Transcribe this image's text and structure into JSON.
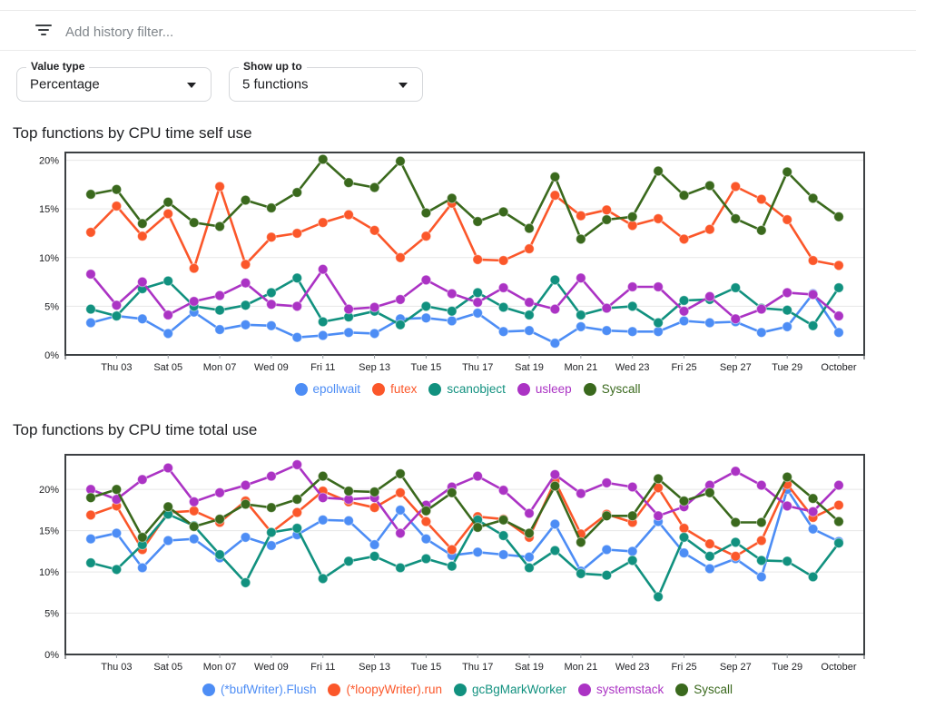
{
  "filter_bar": {
    "placeholder": "Add history filter...",
    "icon": "filter-list"
  },
  "controls": [
    {
      "label": "Value type",
      "value": "Percentage",
      "icon": "chevron-down"
    },
    {
      "label": "Show up to",
      "value": "5 functions",
      "icon": "chevron-down"
    }
  ],
  "colors": {
    "blue": "#4d8df5",
    "orange": "#fb572a",
    "teal": "#11917f",
    "purple": "#ab33c4",
    "green": "#3a691d",
    "grid": "#e7e7e7",
    "plot_border": "#3c4043",
    "axis_text": "#202124"
  },
  "chart_data": [
    {
      "type": "line",
      "title": "Top functions by CPU time self use",
      "x_tick_labels": [
        "Thu 03",
        "Sat 05",
        "Mon 07",
        "Wed 09",
        "Fri 11",
        "Sep 13",
        "Tue 15",
        "Thu 17",
        "Sat 19",
        "Mon 21",
        "Wed 23",
        "Fri 25",
        "Sep 27",
        "Tue 29",
        "October"
      ],
      "ytick_labels": [
        "0%",
        "5%",
        "10%",
        "15%",
        "20%"
      ],
      "ytick_values": [
        0,
        5,
        10,
        15,
        20
      ],
      "ylim": [
        0,
        20.8
      ],
      "grid": true,
      "legend_position": "bottom",
      "series": [
        {
          "name": "epollwait",
          "color": "#4d8df5",
          "values": [
            3.3,
            4.0,
            3.7,
            2.2,
            4.4,
            2.6,
            3.1,
            3.0,
            1.8,
            2.0,
            2.3,
            2.2,
            3.7,
            3.8,
            3.5,
            4.3,
            2.4,
            2.5,
            1.2,
            2.9,
            2.5,
            2.4,
            2.4,
            3.5,
            3.3,
            3.4,
            2.3,
            2.9,
            6.3,
            2.3
          ]
        },
        {
          "name": "futex",
          "color": "#fb572a",
          "values": [
            12.6,
            15.3,
            12.2,
            14.5,
            8.9,
            17.3,
            9.3,
            12.1,
            12.5,
            13.6,
            14.4,
            12.8,
            10.0,
            12.2,
            15.6,
            9.8,
            9.7,
            10.9,
            16.4,
            14.3,
            14.9,
            13.3,
            14.0,
            11.9,
            12.9,
            17.3,
            16.0,
            13.9,
            9.7,
            9.2
          ]
        },
        {
          "name": "scanobject",
          "color": "#11917f",
          "values": [
            4.7,
            4.0,
            6.8,
            7.6,
            5.0,
            4.6,
            5.1,
            6.4,
            7.9,
            3.4,
            3.9,
            4.5,
            3.1,
            5.0,
            4.5,
            6.4,
            4.9,
            4.1,
            7.7,
            4.1,
            4.8,
            5.0,
            3.3,
            5.6,
            5.7,
            6.9,
            4.8,
            4.6,
            3.0,
            6.9
          ]
        },
        {
          "name": "usleep",
          "color": "#ab33c4",
          "values": [
            8.3,
            5.1,
            7.5,
            4.1,
            5.5,
            6.1,
            7.4,
            5.2,
            5.0,
            8.8,
            4.7,
            4.9,
            5.7,
            7.7,
            6.3,
            5.4,
            6.9,
            5.4,
            4.7,
            7.9,
            4.8,
            7.0,
            7.0,
            4.5,
            6.0,
            3.7,
            4.7,
            6.4,
            6.2,
            4.0
          ]
        },
        {
          "name": "Syscall",
          "color": "#3a691d",
          "values": [
            16.5,
            17.0,
            13.5,
            15.7,
            13.6,
            13.2,
            15.9,
            15.1,
            16.7,
            20.1,
            17.7,
            17.2,
            19.9,
            14.6,
            16.1,
            13.7,
            14.7,
            13.0,
            18.3,
            11.9,
            13.9,
            14.2,
            18.9,
            16.4,
            17.4,
            14.0,
            12.8,
            18.8,
            16.1,
            14.2
          ]
        }
      ]
    },
    {
      "type": "line",
      "title": "Top functions by CPU time total use",
      "x_tick_labels": [
        "Thu 03",
        "Sat 05",
        "Mon 07",
        "Wed 09",
        "Fri 11",
        "Sep 13",
        "Tue 15",
        "Thu 17",
        "Sat 19",
        "Mon 21",
        "Wed 23",
        "Fri 25",
        "Sep 27",
        "Tue 29",
        "October"
      ],
      "ytick_labels": [
        "0%",
        "5%",
        "10%",
        "15%",
        "20%"
      ],
      "ytick_values": [
        0,
        5,
        10,
        15,
        20
      ],
      "ylim": [
        0,
        24.2
      ],
      "grid": true,
      "legend_position": "bottom",
      "series": [
        {
          "name": "(*bufWriter).Flush",
          "color": "#4d8df5",
          "values": [
            14.0,
            14.7,
            10.5,
            13.8,
            14.0,
            11.7,
            14.2,
            13.2,
            14.5,
            16.3,
            16.2,
            13.3,
            17.5,
            14.0,
            12.0,
            12.4,
            12.1,
            11.8,
            15.8,
            10.1,
            12.7,
            12.5,
            16.1,
            12.3,
            10.4,
            11.6,
            9.4,
            20.0,
            15.2,
            13.7
          ]
        },
        {
          "name": "(*loopyWriter).run",
          "color": "#fb572a",
          "values": [
            16.9,
            18.0,
            12.7,
            17.2,
            17.4,
            16.0,
            18.6,
            14.8,
            17.2,
            19.8,
            18.5,
            17.8,
            19.6,
            16.1,
            12.7,
            16.7,
            16.4,
            14.2,
            21.0,
            14.6,
            17.0,
            16.0,
            20.2,
            15.3,
            13.4,
            11.9,
            13.8,
            20.6,
            16.6,
            18.1
          ]
        },
        {
          "name": "gcBgMarkWorker",
          "color": "#11917f",
          "values": [
            11.1,
            10.3,
            13.3,
            17.0,
            15.6,
            12.1,
            8.7,
            14.8,
            15.3,
            9.2,
            11.3,
            11.9,
            10.5,
            11.6,
            10.7,
            16.3,
            14.4,
            10.5,
            12.6,
            9.8,
            9.6,
            11.4,
            7.0,
            14.2,
            11.9,
            13.6,
            11.4,
            11.3,
            9.4,
            13.5
          ]
        },
        {
          "name": "systemstack",
          "color": "#ab33c4",
          "values": [
            20.0,
            18.8,
            21.2,
            22.6,
            18.5,
            19.6,
            20.5,
            21.6,
            23.0,
            19.0,
            18.8,
            19.0,
            14.7,
            18.1,
            20.3,
            21.6,
            19.9,
            17.1,
            21.8,
            19.5,
            20.8,
            20.3,
            16.8,
            17.9,
            20.5,
            22.2,
            20.5,
            18.0,
            17.3,
            20.5
          ]
        },
        {
          "name": "Syscall",
          "color": "#3a691d",
          "values": [
            19.0,
            20.0,
            14.2,
            17.9,
            15.5,
            16.4,
            18.2,
            17.8,
            18.8,
            21.6,
            19.8,
            19.7,
            21.9,
            17.4,
            19.6,
            15.4,
            16.3,
            14.7,
            20.4,
            13.6,
            16.8,
            16.8,
            21.3,
            18.6,
            19.6,
            16.0,
            16.0,
            21.5,
            18.9,
            16.1
          ]
        }
      ]
    }
  ]
}
